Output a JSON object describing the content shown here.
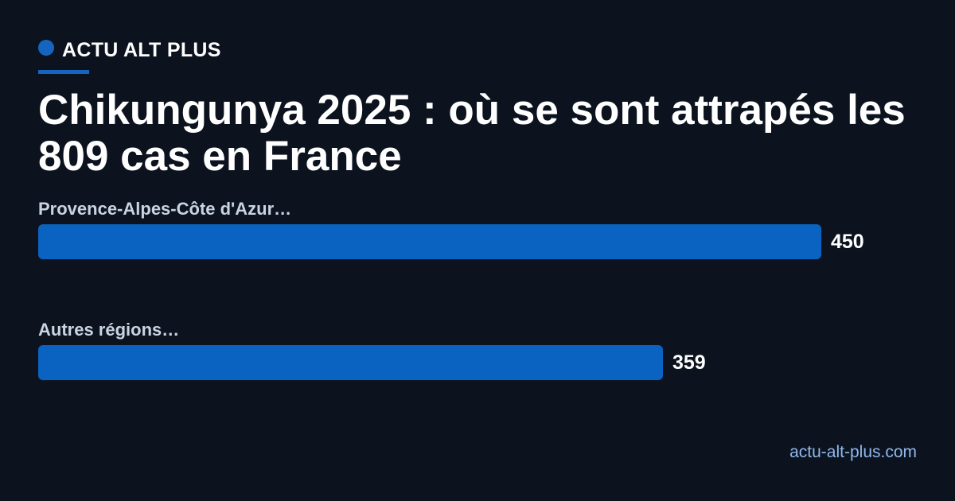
{
  "brand": "ACTU ALT PLUS",
  "chart_data": {
    "type": "bar",
    "orientation": "horizontal",
    "title": "Chikungunya 2025 : où se sont attrapés les 809 cas en France",
    "categories": [
      "Provence-Alpes-Côte d'Azur…",
      "Autres régions…"
    ],
    "values": [
      450,
      359
    ],
    "color": "#0b63c1"
  },
  "footer": "actu-alt-plus.com"
}
